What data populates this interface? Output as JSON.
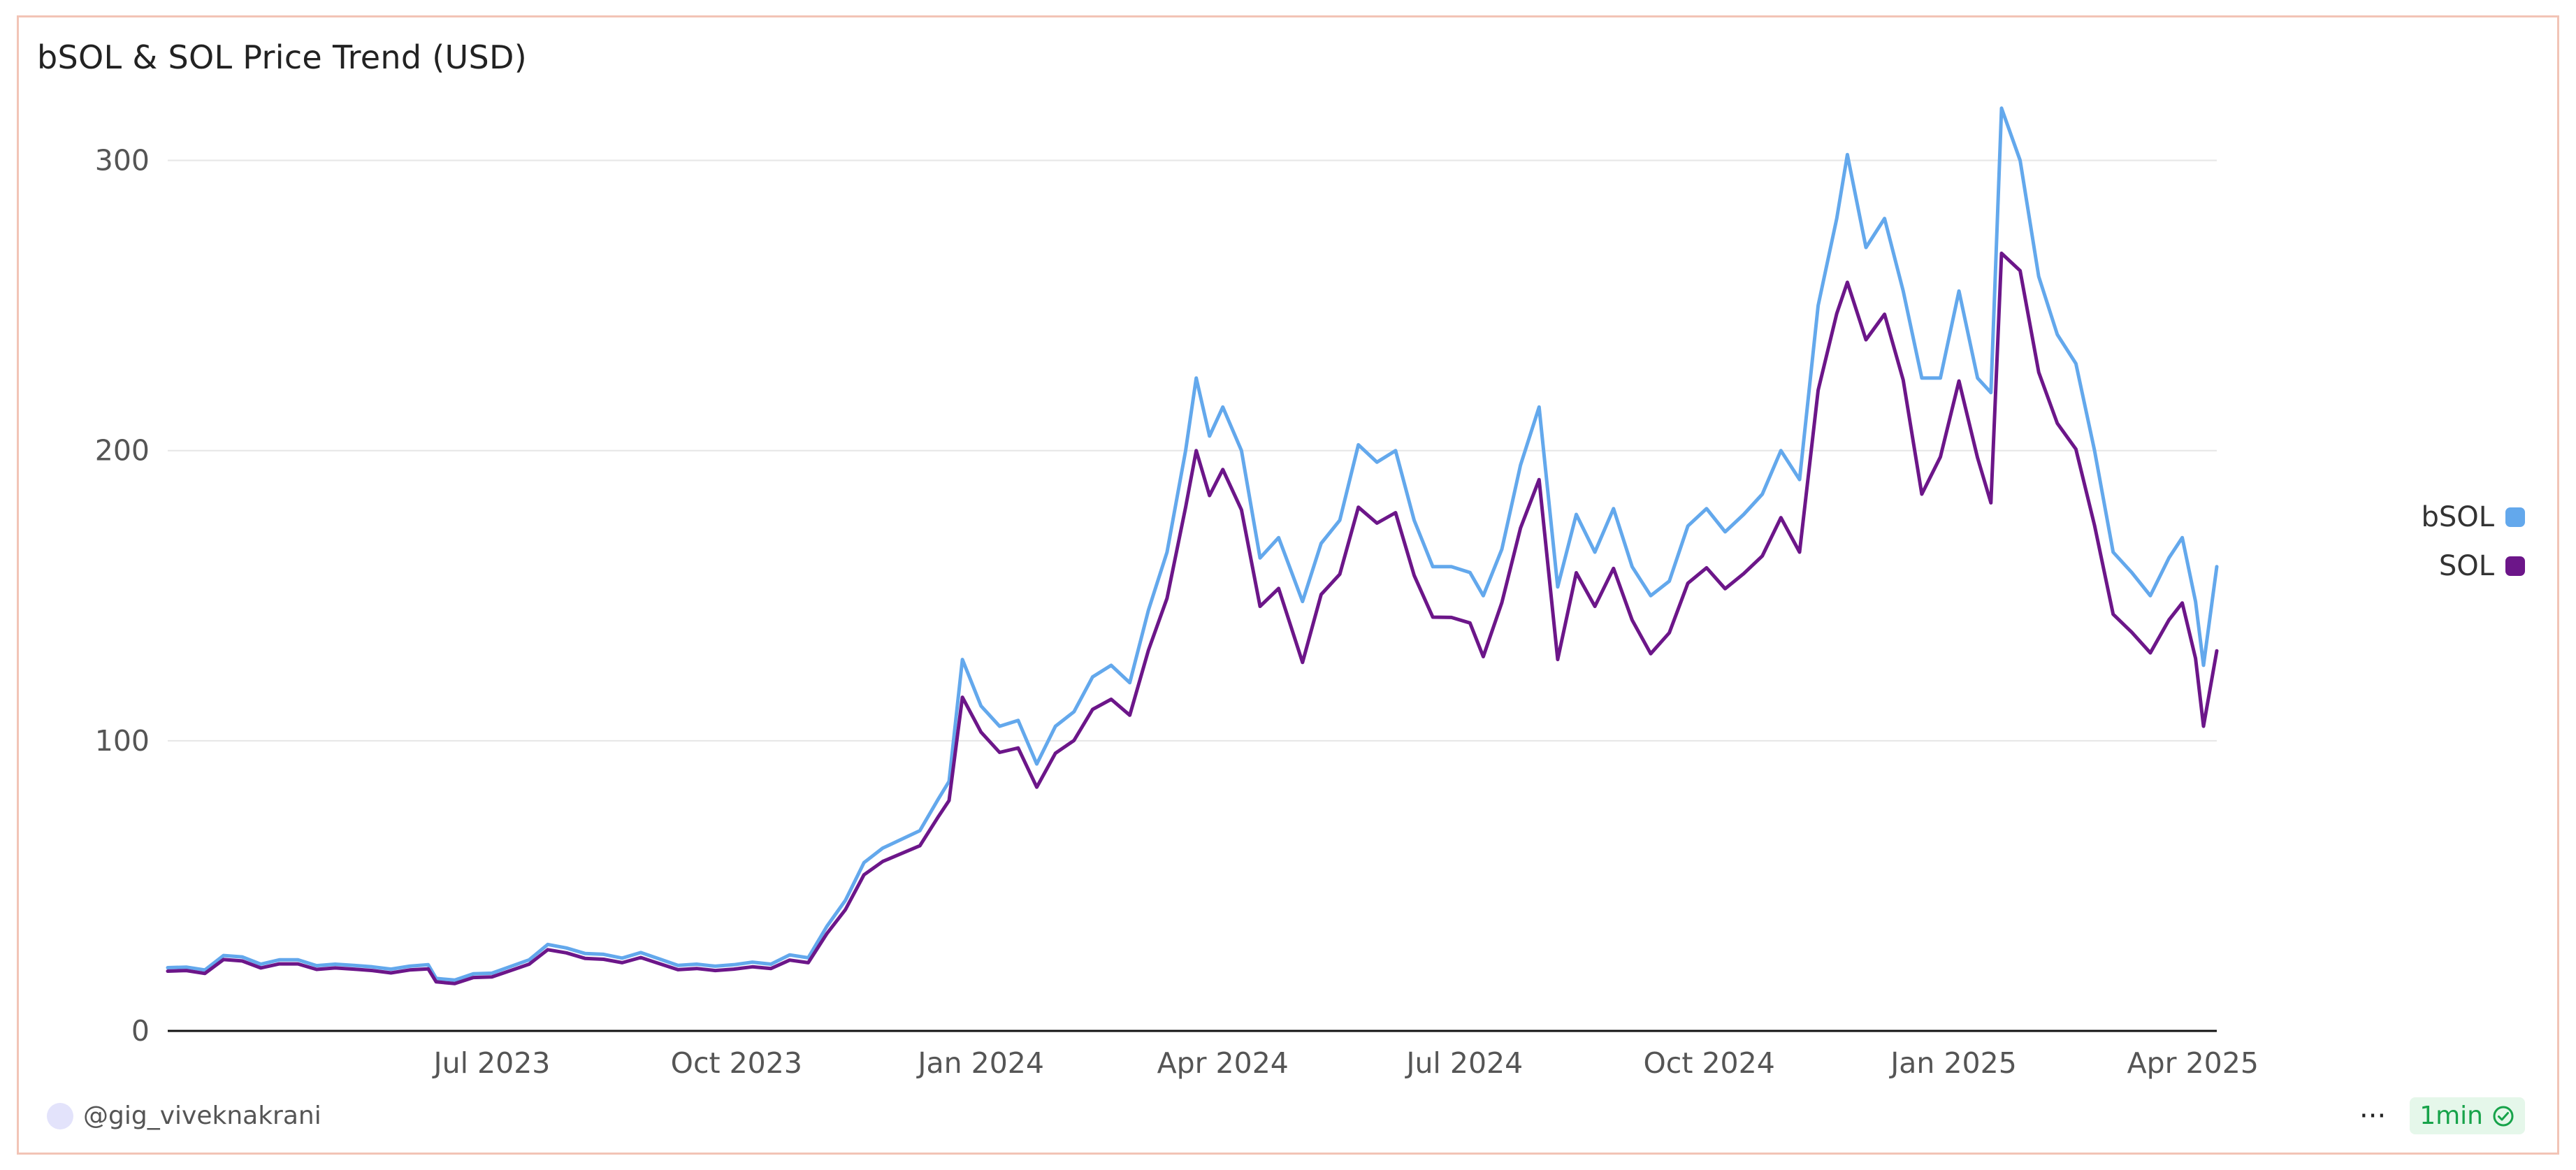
{
  "header": {
    "title": "bSOL & SOL Price Trend (USD)"
  },
  "footer": {
    "username": "@gig_viveknakrani",
    "refresh_label": "1min",
    "more_icon": "more-icon",
    "check_icon": "check-circle-icon"
  },
  "colors": {
    "bsol": "#63a8ec",
    "sol": "#6c1689",
    "grid": "#e6e6e6",
    "axis": "#111111"
  },
  "chart_data": {
    "type": "line",
    "title": "bSOL & SOL Price Trend (USD)",
    "xlabel": "",
    "ylabel": "",
    "x_range": [
      "2023-03-01",
      "2025-04-10"
    ],
    "ylim": [
      0,
      330
    ],
    "y_ticks": [
      0,
      100,
      200,
      300
    ],
    "x_ticks": [
      {
        "date": "2023-07-01",
        "label": "Jul 2023"
      },
      {
        "date": "2023-10-01",
        "label": "Oct 2023"
      },
      {
        "date": "2024-01-01",
        "label": "Jan 2024"
      },
      {
        "date": "2024-04-01",
        "label": "Apr 2024"
      },
      {
        "date": "2024-07-01",
        "label": "Jul 2024"
      },
      {
        "date": "2024-10-01",
        "label": "Oct 2024"
      },
      {
        "date": "2025-01-01",
        "label": "Jan 2025"
      },
      {
        "date": "2025-04-01",
        "label": "Apr 2025"
      }
    ],
    "grid": true,
    "legend_position": "right",
    "series": [
      {
        "name": "bSOL",
        "color": "#63a8ec",
        "points": [
          [
            "2023-03-01",
            21.8
          ],
          [
            "2023-03-08",
            22.0
          ],
          [
            "2023-03-15",
            21.0
          ],
          [
            "2023-03-22",
            26.0
          ],
          [
            "2023-03-29",
            25.5
          ],
          [
            "2023-04-05",
            23.0
          ],
          [
            "2023-04-12",
            24.5
          ],
          [
            "2023-04-19",
            24.5
          ],
          [
            "2023-04-26",
            22.5
          ],
          [
            "2023-05-03",
            23.0
          ],
          [
            "2023-05-10",
            22.6
          ],
          [
            "2023-05-17",
            22.1
          ],
          [
            "2023-05-24",
            21.3
          ],
          [
            "2023-05-31",
            22.3
          ],
          [
            "2023-06-07",
            22.8
          ],
          [
            "2023-06-10",
            18.1
          ],
          [
            "2023-06-17",
            17.5
          ],
          [
            "2023-06-24",
            19.7
          ],
          [
            "2023-07-01",
            19.9
          ],
          [
            "2023-07-08",
            22.2
          ],
          [
            "2023-07-15",
            24.5
          ],
          [
            "2023-07-22",
            29.8
          ],
          [
            "2023-07-29",
            28.6
          ],
          [
            "2023-08-05",
            26.7
          ],
          [
            "2023-08-12",
            26.4
          ],
          [
            "2023-08-19",
            25.1
          ],
          [
            "2023-08-26",
            27.0
          ],
          [
            "2023-09-02",
            24.8
          ],
          [
            "2023-09-09",
            22.6
          ],
          [
            "2023-09-16",
            23.0
          ],
          [
            "2023-09-23",
            22.3
          ],
          [
            "2023-09-30",
            22.8
          ],
          [
            "2023-10-07",
            23.7
          ],
          [
            "2023-10-14",
            23.0
          ],
          [
            "2023-10-21",
            26.2
          ],
          [
            "2023-10-28",
            25.2
          ],
          [
            "2023-11-04",
            36.0
          ],
          [
            "2023-11-11",
            45.0
          ],
          [
            "2023-11-18",
            58.0
          ],
          [
            "2023-11-25",
            63.0
          ],
          [
            "2023-12-02",
            66.0
          ],
          [
            "2023-12-09",
            69.0
          ],
          [
            "2023-12-16",
            80.0
          ],
          [
            "2023-12-20",
            86.0
          ],
          [
            "2023-12-25",
            128.0
          ],
          [
            "2024-01-01",
            112.0
          ],
          [
            "2024-01-08",
            105.0
          ],
          [
            "2024-01-15",
            107.0
          ],
          [
            "2024-01-22",
            92.0
          ],
          [
            "2024-01-29",
            105.0
          ],
          [
            "2024-02-05",
            110.0
          ],
          [
            "2024-02-12",
            122.0
          ],
          [
            "2024-02-19",
            126.0
          ],
          [
            "2024-02-26",
            120.0
          ],
          [
            "2024-03-04",
            145.0
          ],
          [
            "2024-03-11",
            165.0
          ],
          [
            "2024-03-18",
            200.0
          ],
          [
            "2024-03-22",
            225.0
          ],
          [
            "2024-03-27",
            205.0
          ],
          [
            "2024-04-01",
            215.0
          ],
          [
            "2024-04-08",
            200.0
          ],
          [
            "2024-04-15",
            163.0
          ],
          [
            "2024-04-22",
            170.0
          ],
          [
            "2024-05-01",
            148.0
          ],
          [
            "2024-05-08",
            168.0
          ],
          [
            "2024-05-15",
            176.0
          ],
          [
            "2024-05-22",
            202.0
          ],
          [
            "2024-05-29",
            196.0
          ],
          [
            "2024-06-05",
            200.0
          ],
          [
            "2024-06-12",
            176.0
          ],
          [
            "2024-06-19",
            160.0
          ],
          [
            "2024-06-26",
            160.0
          ],
          [
            "2024-07-03",
            158.0
          ],
          [
            "2024-07-08",
            150.0
          ],
          [
            "2024-07-15",
            166.0
          ],
          [
            "2024-07-22",
            195.0
          ],
          [
            "2024-07-29",
            215.0
          ],
          [
            "2024-08-05",
            153.0
          ],
          [
            "2024-08-12",
            178.0
          ],
          [
            "2024-08-19",
            165.0
          ],
          [
            "2024-08-26",
            180.0
          ],
          [
            "2024-09-02",
            160.0
          ],
          [
            "2024-09-09",
            150.0
          ],
          [
            "2024-09-16",
            155.0
          ],
          [
            "2024-09-23",
            174.0
          ],
          [
            "2024-09-30",
            180.0
          ],
          [
            "2024-10-07",
            172.0
          ],
          [
            "2024-10-14",
            178.0
          ],
          [
            "2024-10-21",
            185.0
          ],
          [
            "2024-10-28",
            200.0
          ],
          [
            "2024-11-04",
            190.0
          ],
          [
            "2024-11-11",
            250.0
          ],
          [
            "2024-11-18",
            280.0
          ],
          [
            "2024-11-22",
            302.0
          ],
          [
            "2024-11-29",
            270.0
          ],
          [
            "2024-12-06",
            280.0
          ],
          [
            "2024-12-13",
            255.0
          ],
          [
            "2024-12-20",
            225.0
          ],
          [
            "2024-12-27",
            225.0
          ],
          [
            "2025-01-03",
            255.0
          ],
          [
            "2025-01-10",
            225.0
          ],
          [
            "2025-01-15",
            220.0
          ],
          [
            "2025-01-19",
            318.0
          ],
          [
            "2025-01-26",
            300.0
          ],
          [
            "2025-02-02",
            260.0
          ],
          [
            "2025-02-09",
            240.0
          ],
          [
            "2025-02-16",
            230.0
          ],
          [
            "2025-02-23",
            200.0
          ],
          [
            "2025-03-02",
            165.0
          ],
          [
            "2025-03-09",
            158.0
          ],
          [
            "2025-03-16",
            150.0
          ],
          [
            "2025-03-23",
            163.0
          ],
          [
            "2025-03-28",
            170.0
          ],
          [
            "2025-04-02",
            148.0
          ],
          [
            "2025-04-05",
            126.0
          ],
          [
            "2025-04-10",
            160.0
          ]
        ]
      },
      {
        "name": "SOL",
        "color": "#6c1689",
        "points": [
          [
            "2023-03-01",
            20.6
          ],
          [
            "2023-03-08",
            20.8
          ],
          [
            "2023-03-15",
            19.8
          ],
          [
            "2023-03-22",
            24.6
          ],
          [
            "2023-03-29",
            24.1
          ],
          [
            "2023-04-05",
            21.7
          ],
          [
            "2023-04-12",
            23.1
          ],
          [
            "2023-04-19",
            23.1
          ],
          [
            "2023-04-26",
            21.2
          ],
          [
            "2023-05-03",
            21.7
          ],
          [
            "2023-05-10",
            21.3
          ],
          [
            "2023-05-17",
            20.8
          ],
          [
            "2023-05-24",
            20.0
          ],
          [
            "2023-05-31",
            21.0
          ],
          [
            "2023-06-07",
            21.4
          ],
          [
            "2023-06-10",
            16.9
          ],
          [
            "2023-06-17",
            16.3
          ],
          [
            "2023-06-24",
            18.4
          ],
          [
            "2023-07-01",
            18.6
          ],
          [
            "2023-07-08",
            20.8
          ],
          [
            "2023-07-15",
            23.0
          ],
          [
            "2023-07-22",
            28.0
          ],
          [
            "2023-07-29",
            26.9
          ],
          [
            "2023-08-05",
            25.0
          ],
          [
            "2023-08-12",
            24.7
          ],
          [
            "2023-08-19",
            23.5
          ],
          [
            "2023-08-26",
            25.3
          ],
          [
            "2023-09-02",
            23.2
          ],
          [
            "2023-09-09",
            21.1
          ],
          [
            "2023-09-16",
            21.5
          ],
          [
            "2023-09-23",
            20.8
          ],
          [
            "2023-09-30",
            21.3
          ],
          [
            "2023-10-07",
            22.1
          ],
          [
            "2023-10-14",
            21.5
          ],
          [
            "2023-10-21",
            24.4
          ],
          [
            "2023-10-28",
            23.5
          ],
          [
            "2023-11-04",
            33.5
          ],
          [
            "2023-11-11",
            41.8
          ],
          [
            "2023-11-18",
            53.8
          ],
          [
            "2023-11-25",
            58.4
          ],
          [
            "2023-12-02",
            61.1
          ],
          [
            "2023-12-09",
            63.8
          ],
          [
            "2023-12-16",
            73.9
          ],
          [
            "2023-12-20",
            79.4
          ],
          [
            "2023-12-25",
            115.0
          ],
          [
            "2024-01-01",
            103.0
          ],
          [
            "2024-01-08",
            96.0
          ],
          [
            "2024-01-15",
            97.5
          ],
          [
            "2024-01-22",
            84.0
          ],
          [
            "2024-01-29",
            95.7
          ],
          [
            "2024-02-05",
            100.1
          ],
          [
            "2024-02-12",
            110.8
          ],
          [
            "2024-02-19",
            114.3
          ],
          [
            "2024-02-26",
            108.8
          ],
          [
            "2024-03-04",
            131.2
          ],
          [
            "2024-03-11",
            149.1
          ],
          [
            "2024-03-18",
            180.5
          ],
          [
            "2024-03-22",
            200.0
          ],
          [
            "2024-03-27",
            184.5
          ],
          [
            "2024-04-01",
            193.5
          ],
          [
            "2024-04-08",
            179.6
          ],
          [
            "2024-04-15",
            146.3
          ],
          [
            "2024-04-22",
            152.5
          ],
          [
            "2024-05-01",
            127.0
          ],
          [
            "2024-05-08",
            150.4
          ],
          [
            "2024-05-15",
            157.4
          ],
          [
            "2024-05-22",
            180.5
          ],
          [
            "2024-05-29",
            175.0
          ],
          [
            "2024-06-05",
            178.6
          ],
          [
            "2024-06-12",
            157.0
          ],
          [
            "2024-06-19",
            142.6
          ],
          [
            "2024-06-26",
            142.5
          ],
          [
            "2024-07-03",
            140.6
          ],
          [
            "2024-07-08",
            129.0
          ],
          [
            "2024-07-15",
            147.6
          ],
          [
            "2024-07-22",
            173.3
          ],
          [
            "2024-07-29",
            190.0
          ],
          [
            "2024-08-05",
            128.0
          ],
          [
            "2024-08-12",
            157.9
          ],
          [
            "2024-08-19",
            146.3
          ],
          [
            "2024-08-26",
            159.4
          ],
          [
            "2024-09-02",
            141.6
          ],
          [
            "2024-09-09",
            130.0
          ],
          [
            "2024-09-16",
            137.2
          ],
          [
            "2024-09-23",
            154.3
          ],
          [
            "2024-09-30",
            159.6
          ],
          [
            "2024-10-07",
            152.4
          ],
          [
            "2024-10-14",
            157.6
          ],
          [
            "2024-10-21",
            163.7
          ],
          [
            "2024-10-28",
            176.9
          ],
          [
            "2024-11-04",
            165.0
          ],
          [
            "2024-11-11",
            220.8
          ],
          [
            "2024-11-18",
            247.2
          ],
          [
            "2024-11-22",
            258.0
          ],
          [
            "2024-11-29",
            238.2
          ],
          [
            "2024-12-06",
            247.0
          ],
          [
            "2024-12-13",
            224.3
          ],
          [
            "2024-12-20",
            185.0
          ],
          [
            "2024-12-27",
            197.8
          ],
          [
            "2025-01-03",
            224.0
          ],
          [
            "2025-01-10",
            197.5
          ],
          [
            "2025-01-15",
            182.0
          ],
          [
            "2025-01-19",
            268.0
          ],
          [
            "2025-01-26",
            262.0
          ],
          [
            "2025-02-02",
            227.0
          ],
          [
            "2025-02-09",
            209.4
          ],
          [
            "2025-02-16",
            200.5
          ],
          [
            "2025-02-23",
            174.2
          ],
          [
            "2025-03-02",
            143.6
          ],
          [
            "2025-03-09",
            137.4
          ],
          [
            "2025-03-16",
            130.3
          ],
          [
            "2025-03-23",
            141.6
          ],
          [
            "2025-03-28",
            147.5
          ],
          [
            "2025-04-02",
            128.4
          ],
          [
            "2025-04-05",
            105.0
          ],
          [
            "2025-04-10",
            131.0
          ]
        ]
      }
    ]
  }
}
